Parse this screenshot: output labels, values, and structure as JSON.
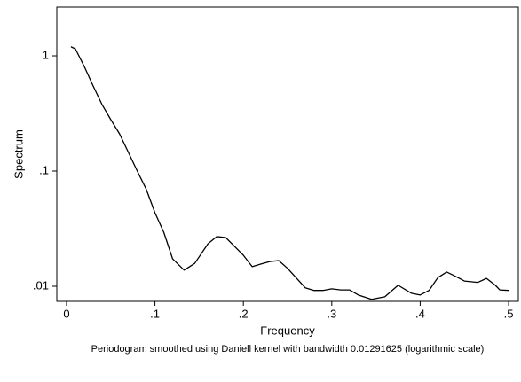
{
  "chart_data": {
    "type": "line",
    "x_label": "Frequency",
    "y_label": "Spectrum",
    "note": "Periodogram smoothed using Daniell kernel with bandwidth 0.01291625 (logarithmic scale)",
    "y_scale": "log",
    "color": "#000000",
    "x": [
      0.005,
      0.01,
      0.02,
      0.03,
      0.04,
      0.05,
      0.06,
      0.07,
      0.08,
      0.09,
      0.1,
      0.11,
      0.12,
      0.133,
      0.145,
      0.16,
      0.17,
      0.18,
      0.2,
      0.21,
      0.22,
      0.23,
      0.24,
      0.25,
      0.27,
      0.28,
      0.29,
      0.3,
      0.31,
      0.32,
      0.33,
      0.345,
      0.36,
      0.375,
      0.39,
      0.4,
      0.41,
      0.42,
      0.43,
      0.44,
      0.45,
      0.46,
      0.465,
      0.475,
      0.485,
      0.49,
      0.5
    ],
    "values": [
      1.2,
      1.15,
      0.81,
      0.55,
      0.38,
      0.28,
      0.21,
      0.145,
      0.1,
      0.07,
      0.0435,
      0.0294,
      0.0173,
      0.0138,
      0.0158,
      0.0234,
      0.027,
      0.0265,
      0.0186,
      0.0148,
      0.0156,
      0.0164,
      0.0167,
      0.0143,
      0.0097,
      0.0092,
      0.0092,
      0.0095,
      0.0093,
      0.0093,
      0.0084,
      0.0077,
      0.0081,
      0.0102,
      0.0087,
      0.0084,
      0.0092,
      0.0119,
      0.0133,
      0.0122,
      0.0111,
      0.0109,
      0.0108,
      0.0117,
      0.0102,
      0.0093,
      0.0092
    ],
    "xlim": [
      -0.011,
      0.511
    ],
    "ylim": [
      0.0074,
      2.65
    ],
    "xticks": [
      0,
      {
        "value": 0.1,
        "label": ".1"
      },
      {
        "value": 0.2,
        "label": ".2"
      },
      {
        "value": 0.3,
        "label": ".3"
      },
      {
        "value": 0.4,
        "label": ".4"
      },
      {
        "value": 0.5,
        "label": ".5"
      }
    ],
    "yticks": [
      {
        "value": 0.01,
        "label": ".01"
      },
      {
        "value": 0.1,
        "label": ".1"
      },
      1
    ],
    "grid": false
  }
}
